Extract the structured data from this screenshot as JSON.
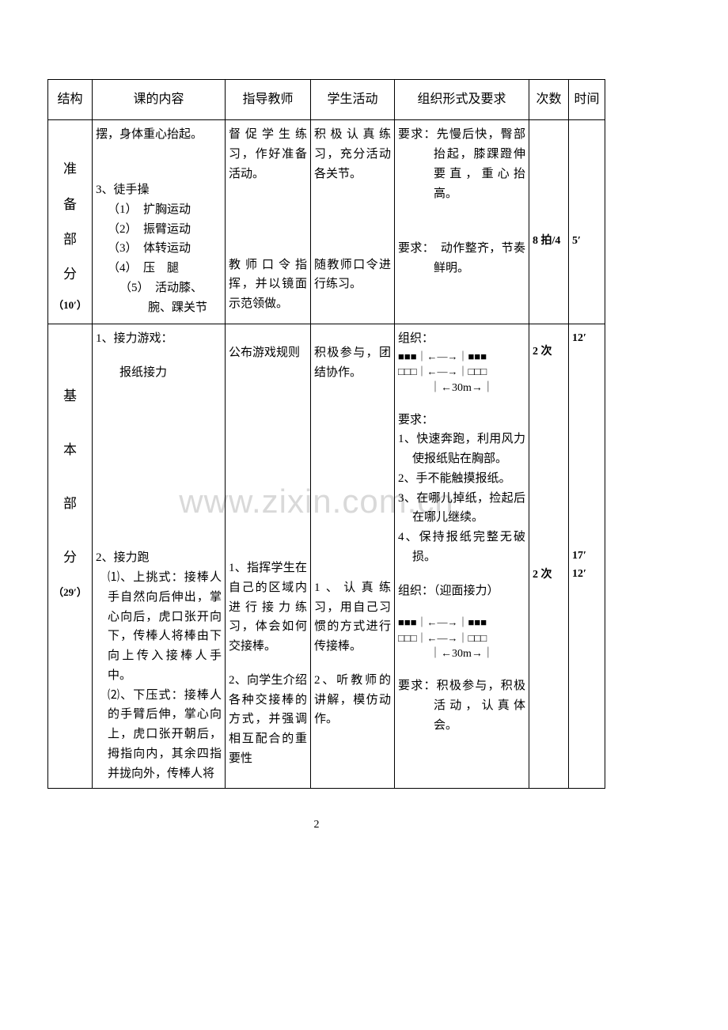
{
  "headers": {
    "structure": "结构",
    "content": "课的内容",
    "teacher": "指导教师",
    "student": "学生活动",
    "org": "组织形式及要求",
    "count": "次数",
    "time": "时间"
  },
  "watermark": "www.zixin.com.cn",
  "page_number": "2",
  "row1": {
    "structure": {
      "l1": "准",
      "l2": "备",
      "l3": "部",
      "l4": "分",
      "dur": "（10′）"
    },
    "content": {
      "p1": "摆，身体重心抬起。",
      "p2": "3、徒手操",
      "i1": "（1）　扩胸运动",
      "i2": "（2）　振臂运动",
      "i3": "（3）　体转运动",
      "i4": "（4）　压　腿",
      "i5": "（5）　活动膝、腕、踝关节"
    },
    "teacher": {
      "p1": "督促学生练习，作好准备活动。",
      "p2": "教师口令指挥，并以镜面示范领做。"
    },
    "student": {
      "p1": "积极认真练习，充分活动各关节。",
      "p2": "随教师口令进行练习。"
    },
    "org": {
      "p1": "要求：先慢后快，臀部抬起，膝踝蹬伸要直，重心抬高。",
      "p2": "要求：　动作整齐，节奏鲜明。"
    },
    "count": {
      "v1": "8 拍/4"
    },
    "time": {
      "v1": "5′"
    }
  },
  "row2": {
    "structure": {
      "l1": "基",
      "l2": "本",
      "l3": "部",
      "l4": "分",
      "dur": "（29′）"
    },
    "content": {
      "p1": "1、接力游戏：",
      "p1b": "报纸接力",
      "p2": "2、接力跑",
      "s1": "⑴、上挑式：接棒人手自然向后伸出，掌心向后，虎口张开向下，传棒人将棒由下向上传入接棒人手中。",
      "s2": "⑵、下压式：接棒人的手臂后伸，掌心向上，虎口张开朝后，拇指向内，其余四指并拢向外，传棒人将"
    },
    "teacher": {
      "p1": "公布游戏规则",
      "p2": "1、指挥学生在自己的区域内进行接力练习，体会如何交接棒。",
      "p3": "2、向学生介绍各种交接棒的方式，并强调相互配合的重要性"
    },
    "student": {
      "p1": "积极参与，团结协作。",
      "p2": "1、认真练习，用自己习惯的方式进行传接棒。",
      "p3": "2、听教师的讲解，模仿动作。"
    },
    "org": {
      "g1": "组织：",
      "d1a": "■■■｜←—→｜■■■",
      "d1b": "□□□｜←—→｜□□□",
      "d1c": "｜←30m→｜",
      "r0": "要求：",
      "r1": "1、快速奔跑，利用风力使报纸贴在胸部。",
      "r2": "2、手不能触摸报纸。",
      "r3": "3、在哪儿掉纸，捡起后在哪儿继续。",
      "r4": "4、保持报纸完整无破损。",
      "g2": "组织：（迎面接力）",
      "d2a": "■■■｜←—→｜■■■",
      "d2b": "□□□｜←—→｜□□□",
      "d2c": "｜←30m→｜",
      "r5": "要求：积极参与，积极活动，认真体会。"
    },
    "count": {
      "v1": "2 次",
      "v2": "2 次"
    },
    "time": {
      "v1": "12′",
      "v2": "17′",
      "v3": "12′"
    }
  }
}
